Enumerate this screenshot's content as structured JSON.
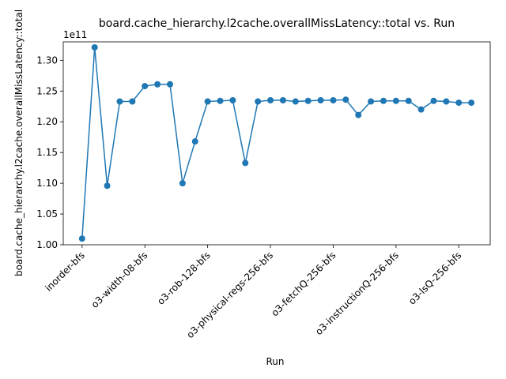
{
  "chart_data": {
    "type": "line",
    "title": "board.cache_hierarchy.l2cache.overallMissLatency::total vs. Run",
    "xlabel": "Run",
    "ylabel": "board.cache_hierarchy.l2cache.overallMissLatency::total",
    "y_offset_label": "1e11",
    "y_scale": 100000000000,
    "ylim": [
      1.0,
      1.33
    ],
    "yticks": [
      1.0,
      1.05,
      1.1,
      1.15,
      1.2,
      1.25,
      1.3
    ],
    "ytick_labels": [
      "1.00",
      "1.05",
      "1.10",
      "1.15",
      "1.20",
      "1.25",
      "1.30"
    ],
    "x_tick_positions": [
      0,
      5,
      10,
      15,
      20,
      25,
      30
    ],
    "x_tick_labels": [
      "inorder-bfs",
      "o3-width-08-bfs",
      "o3-rob-128-bfs",
      "o3-physical-regs-256-bfs",
      "o3-fetchQ-256-bfs",
      "o3-instructionQ-256-bfs",
      "o3-lsQ-256-bfs"
    ],
    "series": [
      {
        "color": "#1f77b4",
        "values": [
          1.01,
          1.321,
          1.096,
          1.233,
          1.233,
          1.258,
          1.261,
          1.261,
          1.1,
          1.168,
          1.233,
          1.234,
          1.235,
          1.133,
          1.233,
          1.235,
          1.235,
          1.233,
          1.234,
          1.235,
          1.235,
          1.236,
          1.211,
          1.233,
          1.234,
          1.234,
          1.234,
          1.22,
          1.234,
          1.233,
          1.231,
          1.231
        ]
      }
    ],
    "grid": false,
    "legend": "none"
  }
}
